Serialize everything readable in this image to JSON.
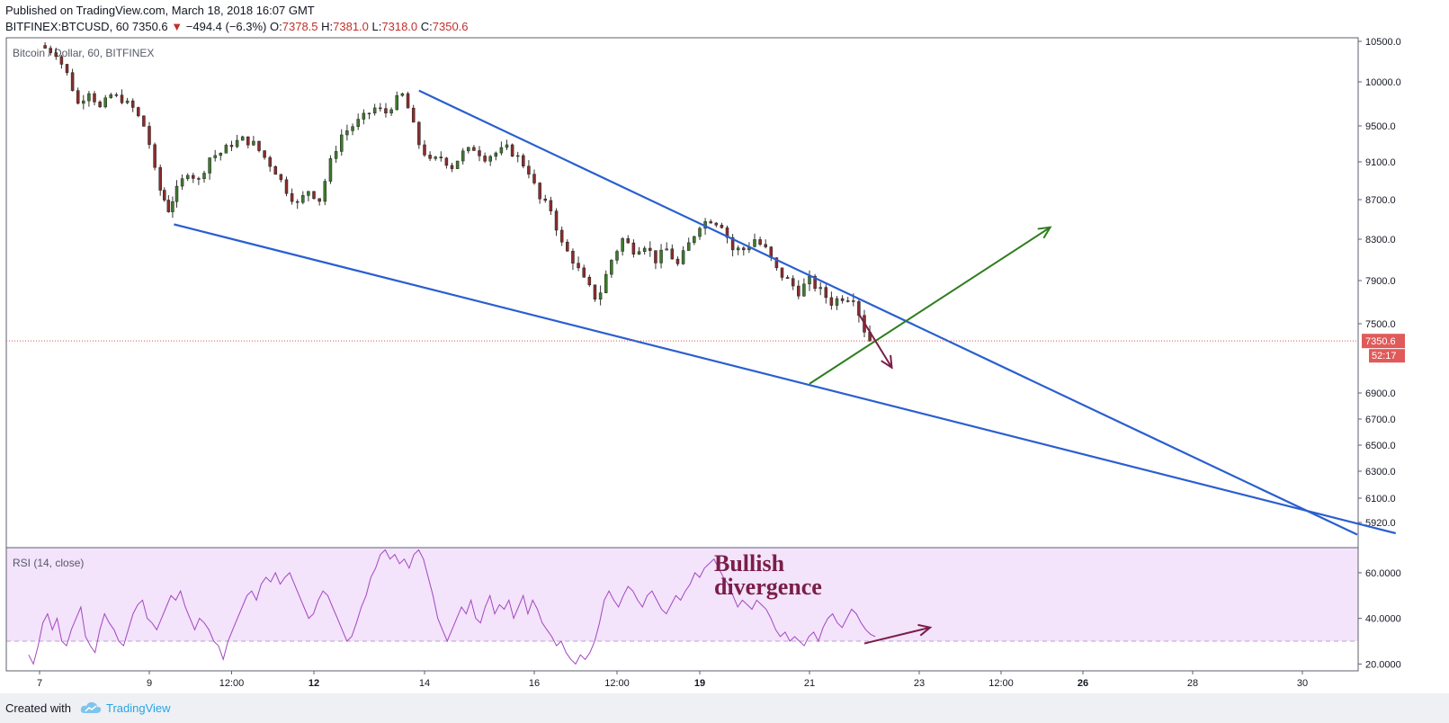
{
  "header": {
    "published": "Published on TradingView.com, March 18, 2018 16:07 GMT",
    "symbol": "BITFINEX:BTCUSD, 60",
    "last": "7350.6",
    "change": "−494.4 (−6.3%)",
    "o_label": "O:",
    "o": "7378.5",
    "h_label": "H:",
    "h": "7381.0",
    "l_label": "L:",
    "l": "7318.0",
    "c_label": "C:",
    "c": "7350.6"
  },
  "footer": {
    "created": "Created with",
    "brand": "TradingView"
  },
  "colors": {
    "up": "#3e7a2c",
    "down": "#8b2c2c",
    "trendline": "#2a5fd0",
    "green_arrow": "#2e7d1e",
    "maroon_arrow": "#7a1e48",
    "rsi_line": "#a347c0",
    "rsi_band": "#f3e3fb",
    "price_line": "#e05050"
  },
  "chart_data": [
    {
      "type": "candlestick",
      "title": "Bitcoin / Dollar, 60, BITFINEX",
      "y_ticks": [
        "10500.0",
        "10000.0",
        "9500.0",
        "9100.0",
        "8700.0",
        "8300.0",
        "7900.0",
        "7500.0",
        "6900.0",
        "6700.0",
        "6500.0",
        "6300.0",
        "6100.0",
        "5920.0"
      ],
      "x_ticks": [
        "7",
        "9",
        "12:00",
        "12",
        "14",
        "16",
        "12:00",
        "19",
        "21",
        "23",
        "12:00",
        "26",
        "28",
        "30"
      ],
      "ylim": [
        5750,
        10600
      ],
      "close_path": [
        [
          7.0,
          10450
        ],
        [
          7.3,
          10350
        ],
        [
          7.5,
          10100
        ],
        [
          7.7,
          9750
        ],
        [
          7.9,
          9900
        ],
        [
          8.1,
          9700
        ],
        [
          8.3,
          9850
        ],
        [
          8.5,
          9800
        ],
        [
          8.7,
          9700
        ],
        [
          8.9,
          9500
        ],
        [
          9.0,
          9300
        ],
        [
          9.1,
          9000
        ],
        [
          9.2,
          8800
        ],
        [
          9.35,
          8600
        ],
        [
          9.5,
          8800
        ],
        [
          9.7,
          9000
        ],
        [
          9.9,
          8900
        ],
        [
          10.1,
          9150
        ],
        [
          10.3,
          9200
        ],
        [
          10.5,
          9300
        ],
        [
          10.7,
          9350
        ],
        [
          10.9,
          9300
        ],
        [
          11.1,
          9150
        ],
        [
          11.3,
          9000
        ],
        [
          11.5,
          8800
        ],
        [
          11.7,
          8650
        ],
        [
          11.9,
          8800
        ],
        [
          12.1,
          8700
        ],
        [
          12.3,
          9100
        ],
        [
          12.5,
          9400
        ],
        [
          12.7,
          9500
        ],
        [
          12.9,
          9600
        ],
        [
          13.1,
          9700
        ],
        [
          13.3,
          9650
        ],
        [
          13.5,
          9800
        ],
        [
          13.6,
          9850
        ],
        [
          13.7,
          9700
        ],
        [
          13.9,
          9300
        ],
        [
          14.1,
          9100
        ],
        [
          14.3,
          9150
        ],
        [
          14.5,
          9050
        ],
        [
          14.7,
          9200
        ],
        [
          14.9,
          9250
        ],
        [
          15.1,
          9150
        ],
        [
          15.3,
          9200
        ],
        [
          15.5,
          9250
        ],
        [
          15.7,
          9150
        ],
        [
          15.9,
          9000
        ],
        [
          16.1,
          8700
        ],
        [
          16.3,
          8600
        ],
        [
          16.5,
          8250
        ],
        [
          16.7,
          8100
        ],
        [
          16.9,
          7900
        ],
        [
          17.1,
          7750
        ],
        [
          17.2,
          7800
        ],
        [
          17.4,
          8100
        ],
        [
          17.6,
          8300
        ],
        [
          17.8,
          8200
        ],
        [
          18.0,
          8250
        ],
        [
          18.2,
          8100
        ],
        [
          18.4,
          8200
        ],
        [
          18.6,
          8050
        ],
        [
          18.8,
          8250
        ],
        [
          19.0,
          8450
        ],
        [
          19.2,
          8500
        ],
        [
          19.4,
          8450
        ],
        [
          19.6,
          8200
        ],
        [
          19.8,
          8200
        ],
        [
          20.0,
          8300
        ],
        [
          20.2,
          8200
        ],
        [
          20.4,
          8000
        ],
        [
          20.6,
          7900
        ],
        [
          20.8,
          7800
        ],
        [
          21.0,
          7900
        ],
        [
          21.2,
          7800
        ],
        [
          21.4,
          7700
        ],
        [
          21.6,
          7750
        ],
        [
          21.8,
          7750
        ],
        [
          22.0,
          7450
        ],
        [
          22.1,
          7350.6
        ]
      ],
      "last_price": "7350.6",
      "countdown": "52:17",
      "trendlines": [
        {
          "from": [
            13.9,
            9900
          ],
          "to": [
            31.0,
            5830
          ]
        },
        {
          "from": [
            9.45,
            8450
          ],
          "to": [
            31.7,
            5840
          ]
        }
      ]
    },
    {
      "type": "line",
      "title": "RSI (14, close)",
      "y_ticks": [
        "60.0000",
        "40.0000",
        "20.0000"
      ],
      "ylim": [
        17,
        71
      ],
      "band": [
        30,
        70
      ],
      "x_range": [
        6.8,
        22.2
      ],
      "values": [
        24,
        20,
        28,
        38,
        42,
        35,
        40,
        30,
        28,
        35,
        40,
        45,
        32,
        28,
        25,
        35,
        42,
        38,
        35,
        30,
        28,
        35,
        42,
        46,
        48,
        40,
        38,
        35,
        40,
        45,
        50,
        48,
        52,
        45,
        40,
        35,
        40,
        38,
        35,
        30,
        28,
        22,
        30,
        35,
        40,
        45,
        50,
        52,
        48,
        55,
        58,
        56,
        60,
        55,
        58,
        60,
        55,
        50,
        45,
        40,
        42,
        48,
        52,
        50,
        45,
        40,
        35,
        30,
        32,
        38,
        45,
        50,
        58,
        62,
        68,
        70,
        66,
        68,
        64,
        66,
        62,
        68,
        70,
        66,
        58,
        50,
        40,
        35,
        30,
        35,
        40,
        45,
        42,
        48,
        40,
        38,
        45,
        50,
        42,
        46,
        44,
        48,
        40,
        45,
        50,
        42,
        48,
        44,
        38,
        35,
        32,
        28,
        30,
        25,
        22,
        20,
        24,
        22,
        25,
        30,
        38,
        48,
        52,
        48,
        45,
        50,
        54,
        52,
        48,
        45,
        50,
        52,
        48,
        44,
        42,
        46,
        50,
        48,
        52,
        55,
        60,
        58,
        62,
        64,
        66,
        62,
        58,
        55,
        50,
        45,
        48,
        46,
        44,
        48,
        46,
        44,
        40,
        35,
        32,
        34,
        30,
        32,
        30,
        28,
        32,
        34,
        30,
        36,
        40,
        42,
        38,
        36,
        40,
        44,
        42,
        38,
        35,
        33,
        32
      ]
    }
  ],
  "annotations": {
    "divergence_line1": "Bullish",
    "divergence_line2": "divergence"
  }
}
